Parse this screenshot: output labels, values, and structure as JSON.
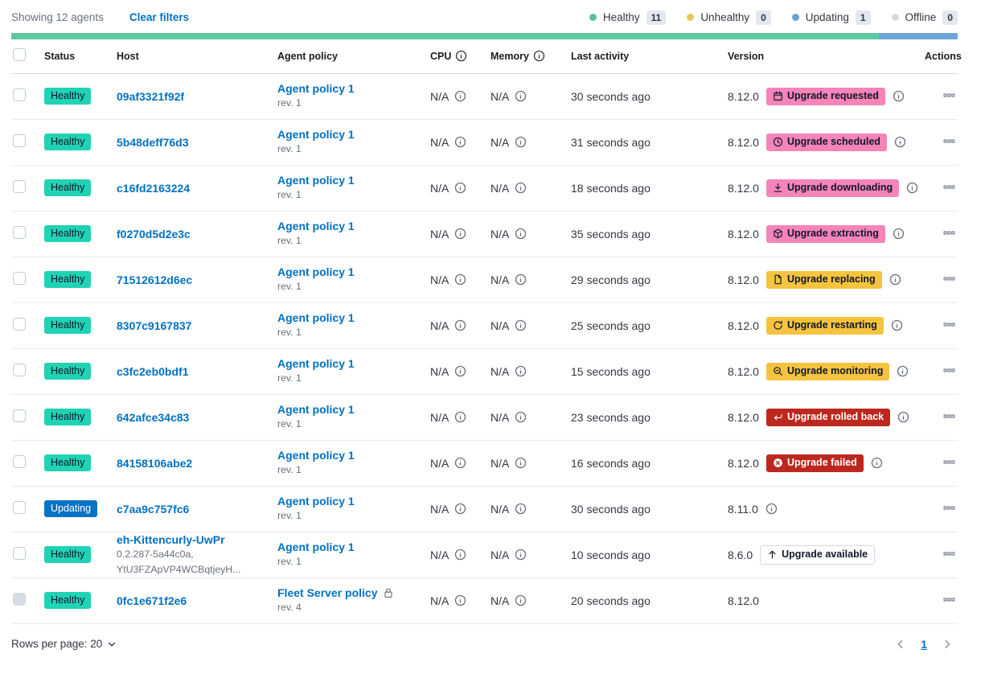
{
  "toolbar": {
    "showing_text": "Showing 12 agents",
    "clear_filters_label": "Clear filters",
    "legend": [
      {
        "label": "Healthy",
        "count": "11",
        "color": "#54c3a1"
      },
      {
        "label": "Unhealthy",
        "count": "0",
        "color": "#e8c75c"
      },
      {
        "label": "Updating",
        "count": "1",
        "color": "#6ca4d9"
      },
      {
        "label": "Offline",
        "count": "0",
        "color": "#d3dae6"
      }
    ]
  },
  "progress_bar": {
    "segments": [
      {
        "name": "healthy",
        "color": "#5dc9a1",
        "fraction": 0.9167
      },
      {
        "name": "updating",
        "color": "#6ea5d8",
        "fraction": 0.0833
      }
    ]
  },
  "colors": {
    "link": "#0071c3",
    "badge_variants": {
      "success": {
        "bg": "#20d3b4",
        "text": "#101828"
      },
      "primary": {
        "bg": "#0873c4",
        "text": "#ffffff"
      },
      "accent": {
        "bg": "#f584b8",
        "text": "#101828"
      },
      "warning": {
        "bg": "#f5c33e",
        "text": "#101828"
      },
      "danger": {
        "bg": "#bd271e",
        "text": "#ffffff"
      },
      "hollow": {
        "bg": "#ffffff",
        "text": "#101828",
        "border": "#d3dae6"
      }
    }
  },
  "table": {
    "columns": {
      "status": "Status",
      "host": "Host",
      "policy": "Agent policy",
      "cpu": "CPU",
      "memory": "Memory",
      "last_activity": "Last activity",
      "version": "Version",
      "actions": "Actions"
    },
    "na_label": "N/A",
    "rows": [
      {
        "status": "Healthy",
        "status_variant": "success",
        "host": "09af3321f92f",
        "host_sublines": [],
        "policy": "Agent policy 1",
        "policy_rev": "rev. 1",
        "policy_locked": false,
        "cpu": "N/A",
        "memory": "N/A",
        "last_activity": "30 seconds ago",
        "version": "8.12.0",
        "upgrade": {
          "label": "Upgrade requested",
          "variant": "accent",
          "icon": "calendar-icon"
        },
        "version_info": true,
        "checkbox_disabled": false
      },
      {
        "status": "Healthy",
        "status_variant": "success",
        "host": "5b48deff76d3",
        "host_sublines": [],
        "policy": "Agent policy 1",
        "policy_rev": "rev. 1",
        "policy_locked": false,
        "cpu": "N/A",
        "memory": "N/A",
        "last_activity": "31 seconds ago",
        "version": "8.12.0",
        "upgrade": {
          "label": "Upgrade scheduled",
          "variant": "accent",
          "icon": "clock-icon"
        },
        "version_info": true,
        "checkbox_disabled": false
      },
      {
        "status": "Healthy",
        "status_variant": "success",
        "host": "c16fd2163224",
        "host_sublines": [],
        "policy": "Agent policy 1",
        "policy_rev": "rev. 1",
        "policy_locked": false,
        "cpu": "N/A",
        "memory": "N/A",
        "last_activity": "18 seconds ago",
        "version": "8.12.0",
        "upgrade": {
          "label": "Upgrade downloading",
          "variant": "accent",
          "icon": "download-icon"
        },
        "version_info": true,
        "checkbox_disabled": false
      },
      {
        "status": "Healthy",
        "status_variant": "success",
        "host": "f0270d5d2e3c",
        "host_sublines": [],
        "policy": "Agent policy 1",
        "policy_rev": "rev. 1",
        "policy_locked": false,
        "cpu": "N/A",
        "memory": "N/A",
        "last_activity": "35 seconds ago",
        "version": "8.12.0",
        "upgrade": {
          "label": "Upgrade extracting",
          "variant": "accent",
          "icon": "package-icon"
        },
        "version_info": true,
        "checkbox_disabled": false
      },
      {
        "status": "Healthy",
        "status_variant": "success",
        "host": "71512612d6ec",
        "host_sublines": [],
        "policy": "Agent policy 1",
        "policy_rev": "rev. 1",
        "policy_locked": false,
        "cpu": "N/A",
        "memory": "N/A",
        "last_activity": "29 seconds ago",
        "version": "8.12.0",
        "upgrade": {
          "label": "Upgrade replacing",
          "variant": "warning",
          "icon": "document-icon"
        },
        "version_info": true,
        "checkbox_disabled": false
      },
      {
        "status": "Healthy",
        "status_variant": "success",
        "host": "8307c9167837",
        "host_sublines": [],
        "policy": "Agent policy 1",
        "policy_rev": "rev. 1",
        "policy_locked": false,
        "cpu": "N/A",
        "memory": "N/A",
        "last_activity": "25 seconds ago",
        "version": "8.12.0",
        "upgrade": {
          "label": "Upgrade restarting",
          "variant": "warning",
          "icon": "refresh-icon"
        },
        "version_info": true,
        "checkbox_disabled": false
      },
      {
        "status": "Healthy",
        "status_variant": "success",
        "host": "c3fc2eb0bdf1",
        "host_sublines": [],
        "policy": "Agent policy 1",
        "policy_rev": "rev. 1",
        "policy_locked": false,
        "cpu": "N/A",
        "memory": "N/A",
        "last_activity": "15 seconds ago",
        "version": "8.12.0",
        "upgrade": {
          "label": "Upgrade monitoring",
          "variant": "warning",
          "icon": "inspect-icon"
        },
        "version_info": true,
        "checkbox_disabled": false
      },
      {
        "status": "Healthy",
        "status_variant": "success",
        "host": "642afce34c83",
        "host_sublines": [],
        "policy": "Agent policy 1",
        "policy_rev": "rev. 1",
        "policy_locked": false,
        "cpu": "N/A",
        "memory": "N/A",
        "last_activity": "23 seconds ago",
        "version": "8.12.0",
        "upgrade": {
          "label": "Upgrade rolled back",
          "variant": "danger",
          "icon": "undo-icon"
        },
        "version_info": true,
        "checkbox_disabled": false
      },
      {
        "status": "Healthy",
        "status_variant": "success",
        "host": "84158106abe2",
        "host_sublines": [],
        "policy": "Agent policy 1",
        "policy_rev": "rev. 1",
        "policy_locked": false,
        "cpu": "N/A",
        "memory": "N/A",
        "last_activity": "16 seconds ago",
        "version": "8.12.0",
        "upgrade": {
          "label": "Upgrade failed",
          "variant": "danger",
          "icon": "error-icon"
        },
        "version_info": true,
        "checkbox_disabled": false
      },
      {
        "status": "Updating",
        "status_variant": "primary",
        "host": "c7aa9c757fc6",
        "host_sublines": [],
        "policy": "Agent policy 1",
        "policy_rev": "rev. 1",
        "policy_locked": false,
        "cpu": "N/A",
        "memory": "N/A",
        "last_activity": "30 seconds ago",
        "version": "8.11.0",
        "upgrade": null,
        "version_info": true,
        "checkbox_disabled": false
      },
      {
        "status": "Healthy",
        "status_variant": "success",
        "host": "eh-Kittencurly-UwPr",
        "host_sublines": [
          "0.2.287-5a44c0a,",
          "YtU3FZApVP4WCBqtjeyH..."
        ],
        "policy": "Agent policy 1",
        "policy_rev": "rev. 1",
        "policy_locked": false,
        "cpu": "N/A",
        "memory": "N/A",
        "last_activity": "10 seconds ago",
        "version": "8.6.0",
        "upgrade": {
          "label": "Upgrade available",
          "variant": "hollow",
          "icon": "arrow-up-icon"
        },
        "version_info": false,
        "checkbox_disabled": false
      },
      {
        "status": "Healthy",
        "status_variant": "success",
        "host": "0fc1e671f2e6",
        "host_sublines": [],
        "policy": "Fleet Server policy",
        "policy_rev": "rev. 4",
        "policy_locked": true,
        "cpu": "N/A",
        "memory": "N/A",
        "last_activity": "20 seconds ago",
        "version": "8.12.0",
        "upgrade": null,
        "version_info": false,
        "checkbox_disabled": true
      }
    ]
  },
  "footer": {
    "rows_per_page_label": "Rows per page: 20",
    "page": "1"
  }
}
